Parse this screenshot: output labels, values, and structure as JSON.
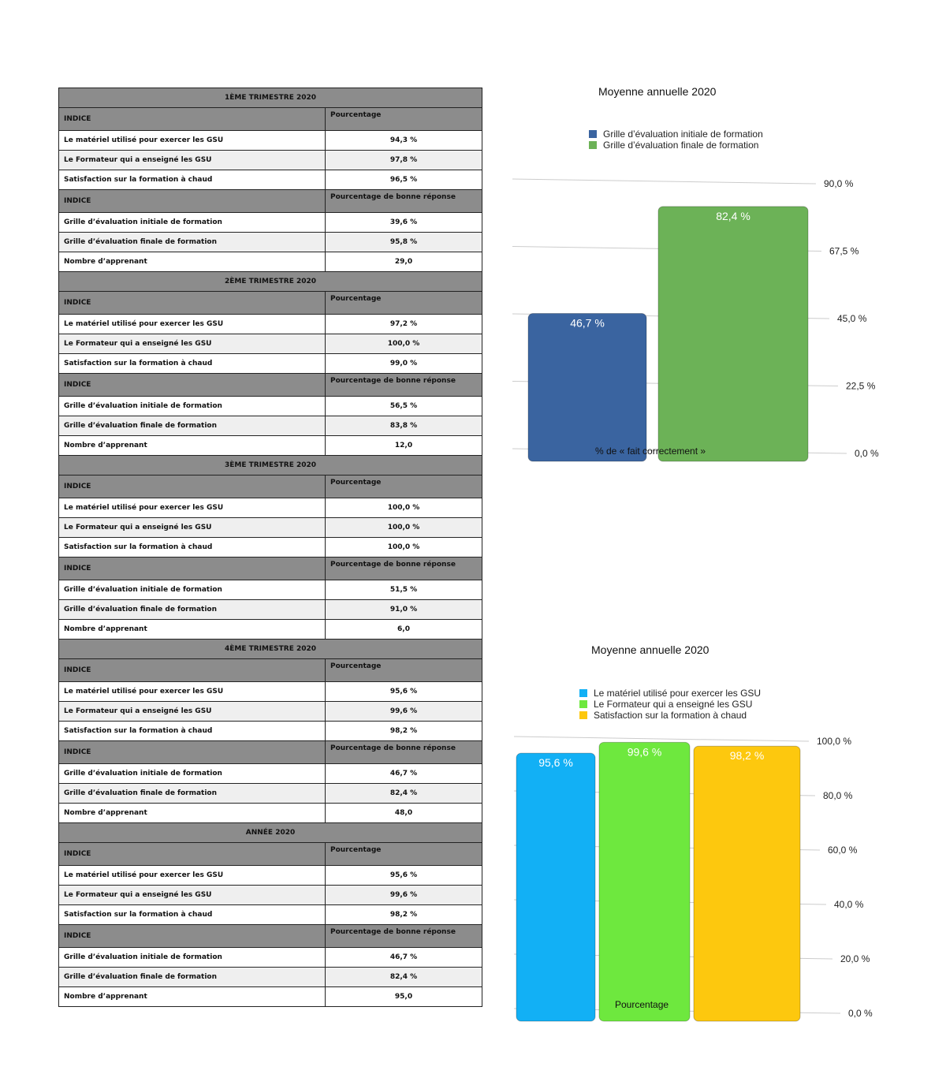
{
  "table": {
    "sections": [
      {
        "title": "1ÈME TRIMESTRE 2020",
        "header1": [
          "INDICE",
          "Pourcentage"
        ],
        "rows1": [
          [
            "Le matériel utilisé pour exercer les GSU",
            "94,3 %"
          ],
          [
            "Le Formateur qui a enseigné les GSU",
            "97,8 %"
          ],
          [
            "Satisfaction sur la formation à chaud",
            "96,5 %"
          ]
        ],
        "header2": [
          "INDICE",
          "Pourcentage de bonne réponse"
        ],
        "rows2": [
          [
            "Grille d’évaluation initiale de formation",
            "39,6 %"
          ],
          [
            "Grille d’évaluation finale de formation",
            "95,8 %"
          ],
          [
            "Nombre d’apprenant",
            "29,0"
          ]
        ]
      },
      {
        "title": "2ÈME TRIMESTRE 2020",
        "header1": [
          "INDICE",
          "Pourcentage"
        ],
        "rows1": [
          [
            "Le matériel utilisé pour exercer les GSU",
            "97,2 %"
          ],
          [
            "Le Formateur qui a enseigné les GSU",
            "100,0 %"
          ],
          [
            "Satisfaction sur la formation à chaud",
            "99,0 %"
          ]
        ],
        "header2": [
          "INDICE",
          "Pourcentage de bonne réponse"
        ],
        "rows2": [
          [
            "Grille d’évaluation initiale de formation",
            "56,5 %"
          ],
          [
            "Grille d’évaluation finale de formation",
            "83,8 %"
          ],
          [
            "Nombre d’apprenant",
            "12,0"
          ]
        ]
      },
      {
        "title": "3ÈME TRIMESTRE 2020",
        "header1": [
          "INDICE",
          "Pourcentage"
        ],
        "rows1": [
          [
            "Le matériel utilisé pour exercer les GSU",
            "100,0 %"
          ],
          [
            "Le Formateur qui a enseigné les GSU",
            "100,0 %"
          ],
          [
            "Satisfaction sur la formation à chaud",
            "100,0 %"
          ]
        ],
        "header2": [
          "INDICE",
          "Pourcentage de bonne réponse"
        ],
        "rows2": [
          [
            "Grille d’évaluation initiale de formation",
            "51,5 %"
          ],
          [
            "Grille d’évaluation finale de formation",
            "91,0 %"
          ],
          [
            "Nombre d’apprenant",
            "6,0"
          ]
        ]
      },
      {
        "title": "4ÈME TRIMESTRE 2020",
        "header1": [
          "INDICE",
          "Pourcentage"
        ],
        "rows1": [
          [
            "Le matériel utilisé pour exercer les GSU",
            "95,6 %"
          ],
          [
            "Le Formateur qui a enseigné les GSU",
            "99,6 %"
          ],
          [
            "Satisfaction sur la formation à chaud",
            "98,2 %"
          ]
        ],
        "header2": [
          "INDICE",
          "Pourcentage de bonne réponse"
        ],
        "rows2": [
          [
            "Grille d’évaluation initiale de formation",
            "46,7 %"
          ],
          [
            "Grille d’évaluation finale de formation",
            "82,4 %"
          ],
          [
            "Nombre d’apprenant",
            "48,0"
          ]
        ]
      },
      {
        "title": "ANNÉE 2020",
        "header1": [
          "INDICE",
          "Pourcentage"
        ],
        "rows1": [
          [
            "Le matériel utilisé pour exercer les GSU",
            "95,6 %"
          ],
          [
            "Le Formateur qui a enseigné les GSU",
            "99,6 %"
          ],
          [
            "Satisfaction sur la formation à chaud",
            "98,2 %"
          ]
        ],
        "header2": [
          "INDICE",
          "Pourcentage de bonne réponse"
        ],
        "rows2": [
          [
            "Grille d’évaluation initiale de formation",
            "46,7 %"
          ],
          [
            "Grille d’évaluation finale de formation",
            "82,4 %"
          ],
          [
            "Nombre d’apprenant",
            "95,0"
          ]
        ]
      }
    ]
  },
  "chart_data": [
    {
      "type": "bar",
      "title": "Moyenne annuelle 2020",
      "categories": [
        "% de « fait correctement »"
      ],
      "series": [
        {
          "name": "Grille d’évaluation initiale de formation",
          "values": [
            46.7
          ],
          "label": "46,7 %",
          "color": "#3a64a0"
        },
        {
          "name": "Grille d’évaluation finale de formation",
          "values": [
            82.4
          ],
          "label": "82,4 %",
          "color": "#6cb257"
        }
      ],
      "ylim": [
        0,
        90
      ],
      "yticks": [
        "0,0 %",
        "22,5 %",
        "45,0 %",
        "67,5 %",
        "90,0 %"
      ],
      "legend": "top",
      "grid": true
    },
    {
      "type": "bar",
      "title": "Moyenne annuelle 2020",
      "categories": [
        "Pourcentage"
      ],
      "series": [
        {
          "name": "Le matériel utilisé pour exercer les GSU",
          "values": [
            95.6
          ],
          "label": "95,6 %",
          "color": "#12b0f5"
        },
        {
          "name": "Le Formateur qui a enseigné les GSU",
          "values": [
            99.6
          ],
          "label": "99,6 %",
          "color": "#6ee83e"
        },
        {
          "name": "Satisfaction sur la formation à chaud",
          "values": [
            98.2
          ],
          "label": "98,2 %",
          "color": "#fdc80e"
        }
      ],
      "ylim": [
        0,
        100
      ],
      "yticks": [
        "0,0 %",
        "20,0 %",
        "40,0 %",
        "60,0 %",
        "80,0 %",
        "100,0 %"
      ],
      "legend": "top",
      "grid": true
    }
  ]
}
